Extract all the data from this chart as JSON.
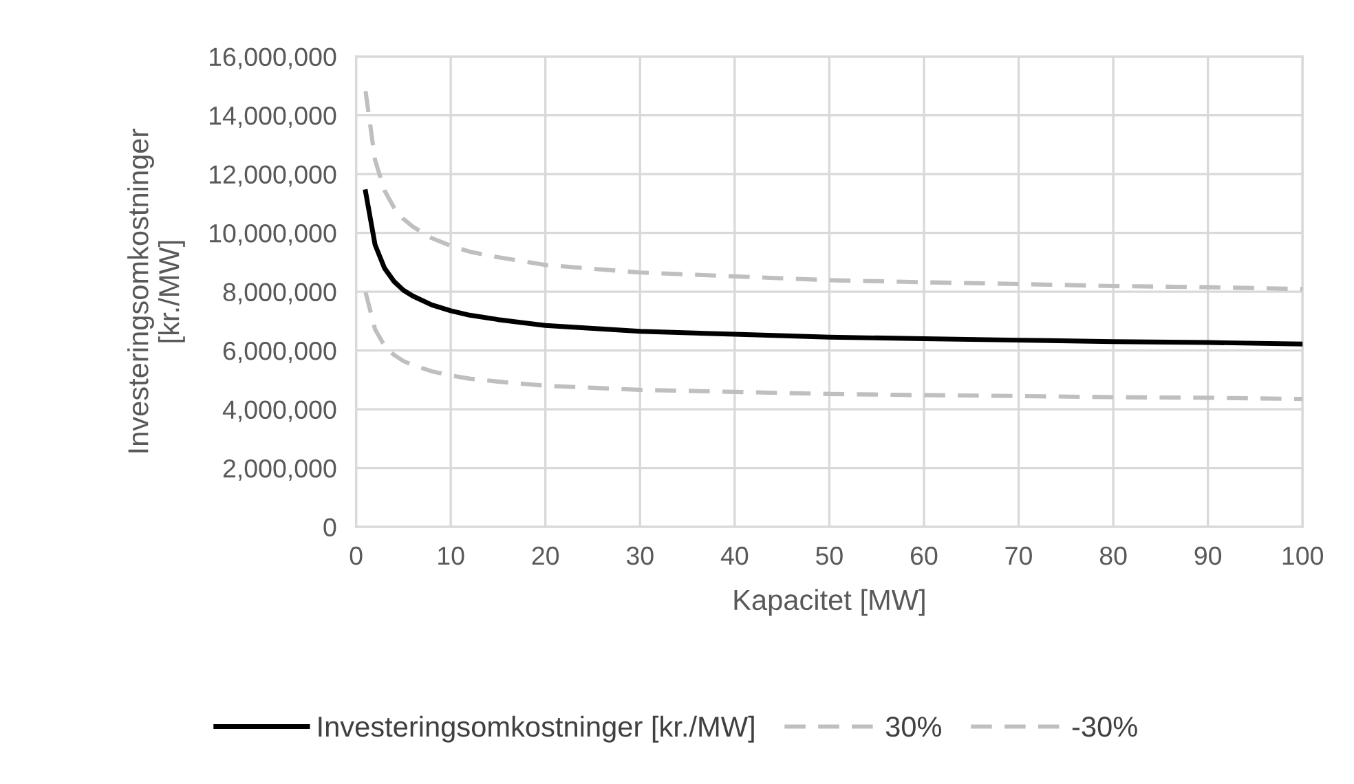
{
  "chart_data": {
    "type": "line",
    "xlabel": "Kapacitet [MW]",
    "ylabel": "Investeringsomkostninger\n[kr./MW]",
    "x": [
      1,
      2,
      3,
      4,
      5,
      6,
      8,
      10,
      12,
      15,
      20,
      25,
      30,
      40,
      50,
      60,
      70,
      80,
      90,
      100
    ],
    "series": [
      {
        "name": "Investeringsomkostninger [kr./MW]",
        "color": "#000000",
        "line_style": "solid",
        "values": [
          11400000,
          9600000,
          8800000,
          8350000,
          8050000,
          7850000,
          7550000,
          7350000,
          7200000,
          7050000,
          6850000,
          6750000,
          6650000,
          6550000,
          6450000,
          6400000,
          6350000,
          6300000,
          6270000,
          6220000
        ]
      },
      {
        "name": "30%",
        "color": "#bfbfbf",
        "line_style": "dashed",
        "values": [
          14820000,
          12480000,
          11440000,
          10860000,
          10470000,
          10210000,
          9820000,
          9560000,
          9360000,
          9170000,
          8910000,
          8780000,
          8650000,
          8520000,
          8390000,
          8320000,
          8260000,
          8190000,
          8150000,
          8090000
        ]
      },
      {
        "name": "-30%",
        "color": "#bfbfbf",
        "line_style": "dashed",
        "values": [
          7980000,
          6720000,
          6160000,
          5850000,
          5640000,
          5500000,
          5290000,
          5150000,
          5040000,
          4940000,
          4800000,
          4730000,
          4660000,
          4590000,
          4520000,
          4480000,
          4450000,
          4410000,
          4390000,
          4350000
        ]
      }
    ],
    "xlim": [
      0,
      100
    ],
    "xticks": [
      0,
      10,
      20,
      30,
      40,
      50,
      60,
      70,
      80,
      90,
      100
    ],
    "ylim": [
      0,
      16000000
    ],
    "yticks": [
      {
        "value": 0,
        "label": "0"
      },
      {
        "value": 2000000,
        "label": "2,000,000"
      },
      {
        "value": 4000000,
        "label": "4,000,000"
      },
      {
        "value": 6000000,
        "label": "6,000,000"
      },
      {
        "value": 8000000,
        "label": "8,000,000"
      },
      {
        "value": 10000000,
        "label": "10,000,000"
      },
      {
        "value": 12000000,
        "label": "12,000,000"
      },
      {
        "value": 14000000,
        "label": "14,000,000"
      },
      {
        "value": 16000000,
        "label": "16,000,000"
      }
    ],
    "grid": true,
    "legend": "bottom",
    "marker": "none"
  }
}
